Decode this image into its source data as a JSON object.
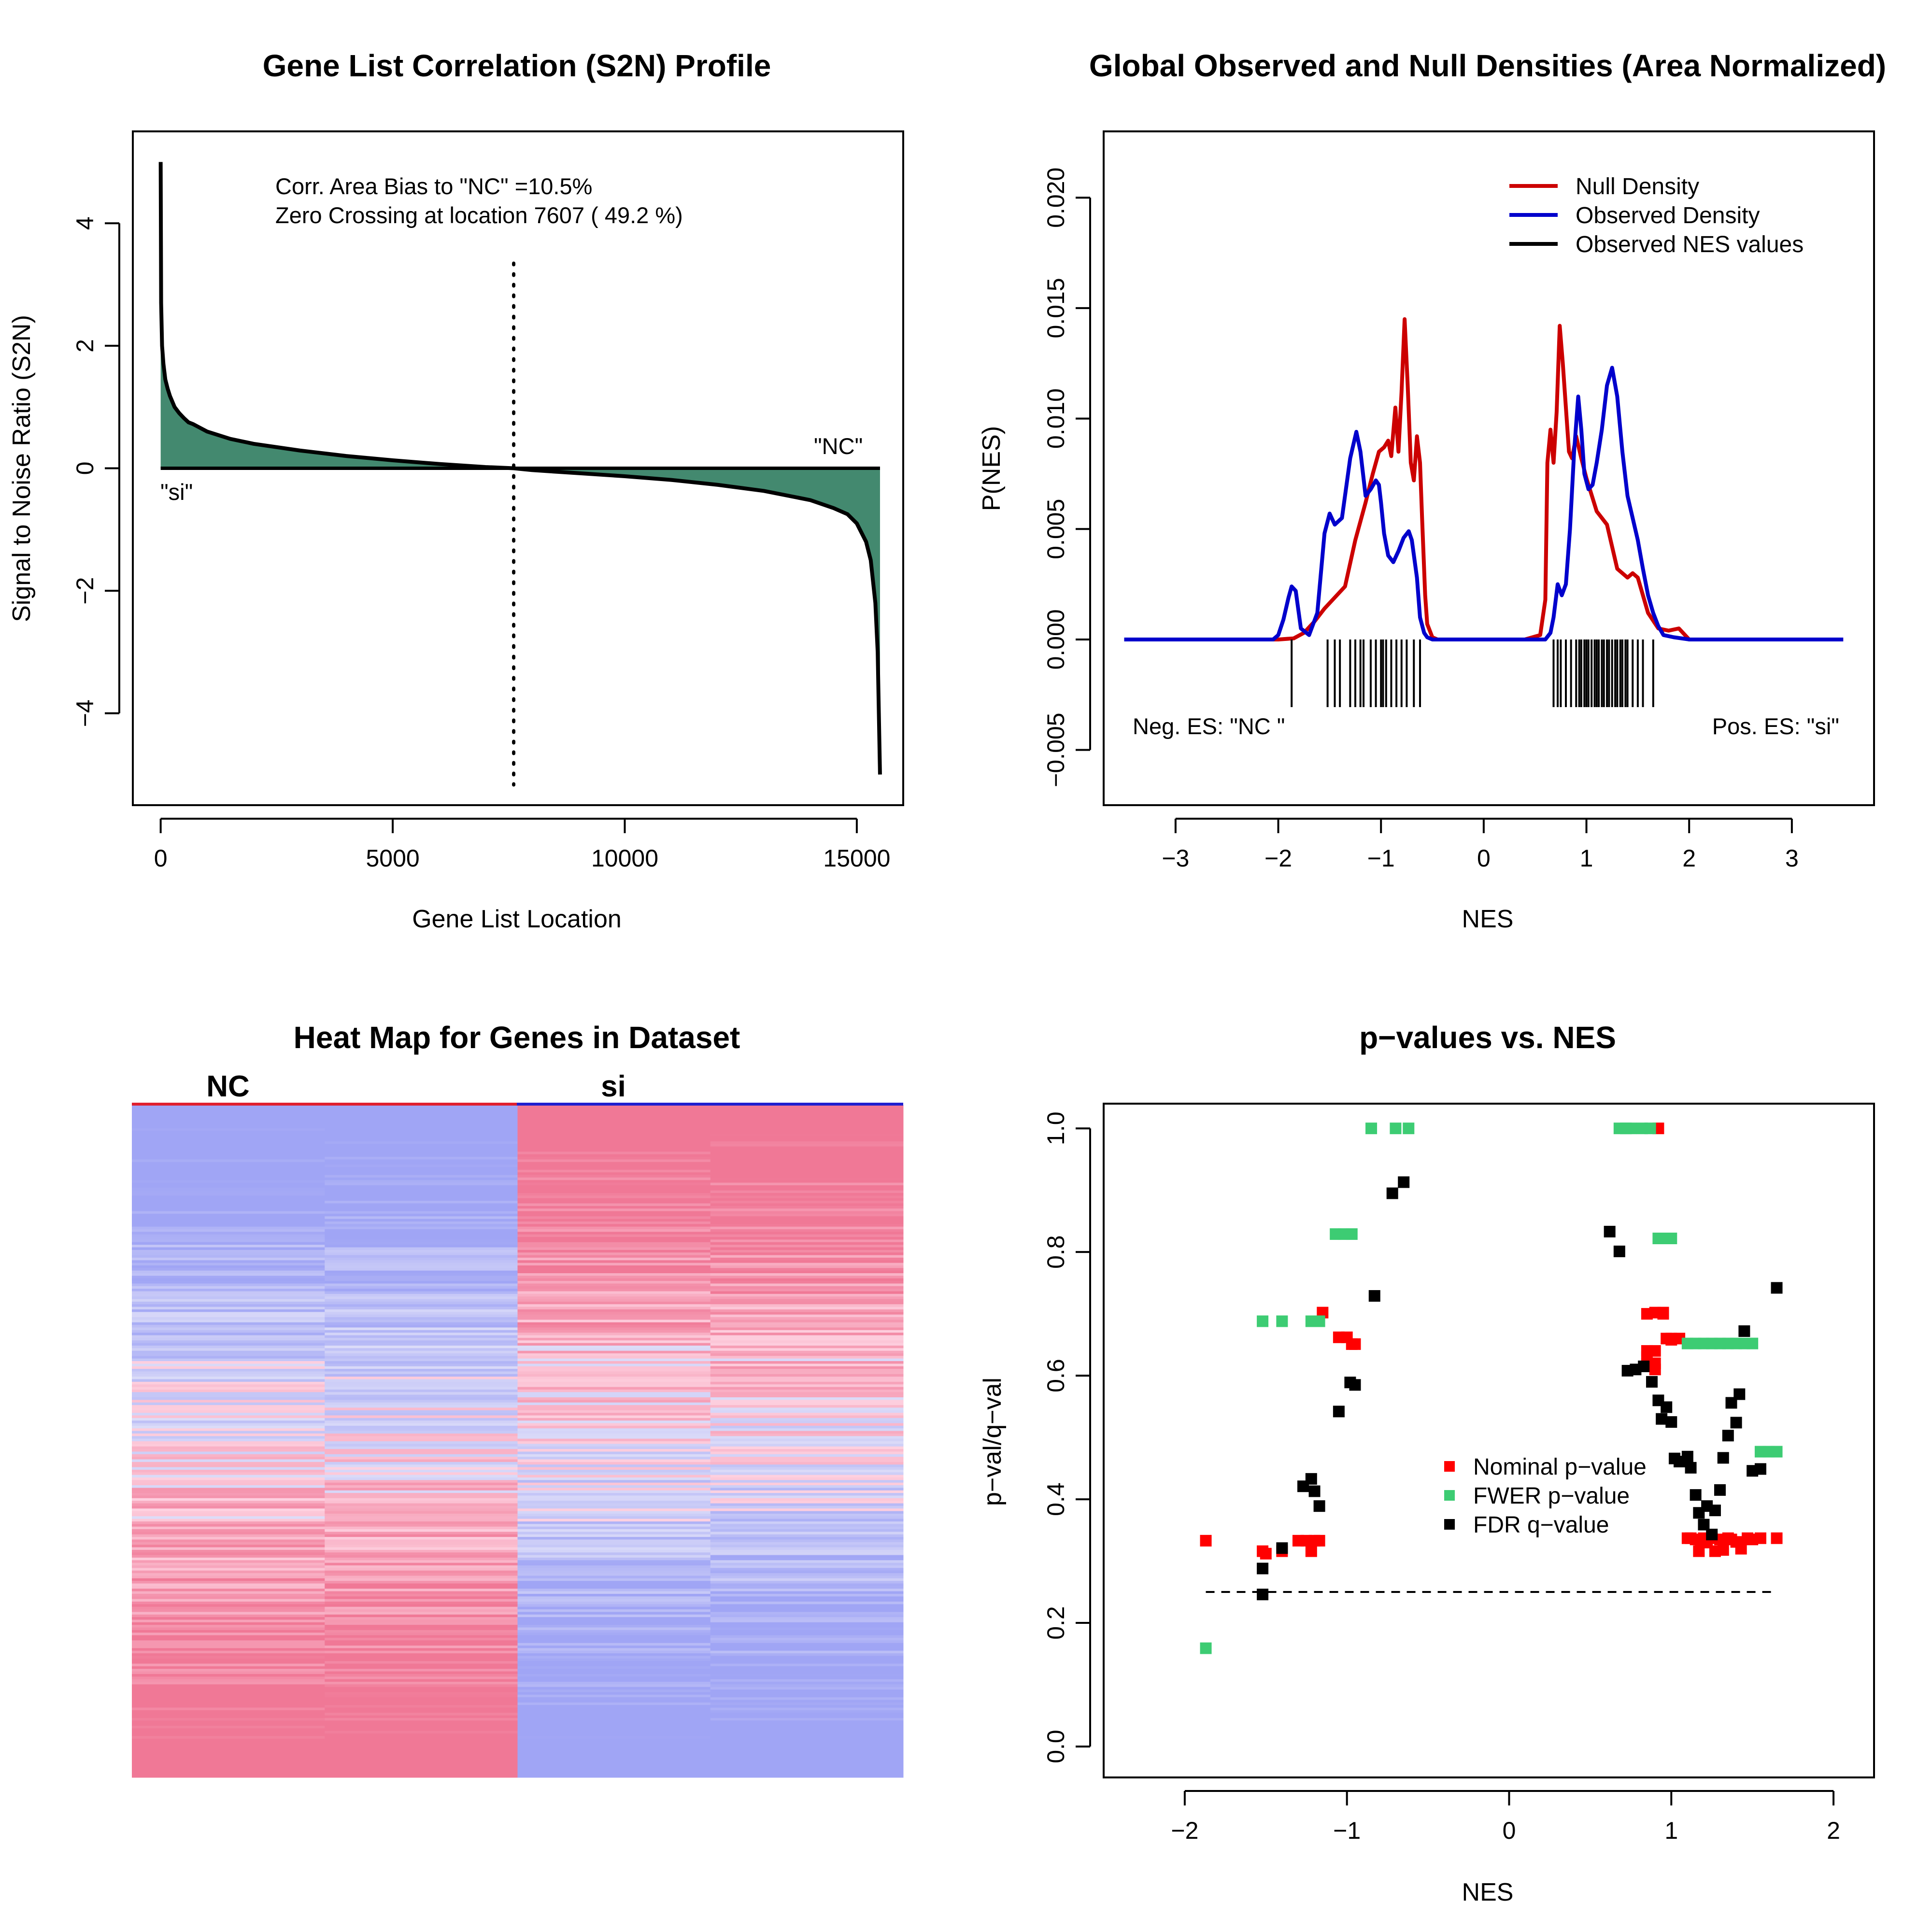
{
  "chart_data": [
    {
      "type": "area",
      "title": "Gene List Correlation (S2N) Profile",
      "xlabel": "Gene List Location",
      "ylabel": "Signal to Noise Ratio (S2N)",
      "xlim": [
        -600,
        16000
      ],
      "ylim": [
        -5.5,
        5.5
      ],
      "xticks": [
        0,
        5000,
        10000,
        15000
      ],
      "xtick_labels": [
        "0",
        "5000",
        "10000",
        "15000"
      ],
      "yticks": [
        -4,
        -2,
        0,
        2,
        4
      ],
      "ytick_labels": [
        "−4",
        "−2",
        "0",
        "2",
        "4"
      ],
      "grid": false,
      "fill_color": "#43896f",
      "annotations": {
        "bias": "Corr. Area Bias to \"NC\" =10.5%",
        "zero_crossing": "Zero Crossing at location  7607  ( 49.2  %)",
        "label_pos": "\"NC\"",
        "label_neg": "\"si\""
      },
      "zero_crossing_x": 7607,
      "x": [
        0,
        10,
        30,
        60,
        100,
        150,
        200,
        300,
        400,
        500,
        600,
        700,
        800,
        1000,
        1500,
        2000,
        3000,
        4000,
        5000,
        6000,
        7000,
        7607,
        8000,
        9000,
        10000,
        11000,
        12000,
        13000,
        14000,
        14500,
        14800,
        15000,
        15200,
        15300,
        15400,
        15450,
        15480,
        15500
      ],
      "y": [
        5.0,
        2.7,
        2.0,
        1.7,
        1.45,
        1.3,
        1.18,
        1.0,
        0.9,
        0.82,
        0.75,
        0.72,
        0.68,
        0.6,
        0.48,
        0.4,
        0.29,
        0.2,
        0.13,
        0.07,
        0.02,
        0.0,
        -0.03,
        -0.08,
        -0.13,
        -0.19,
        -0.27,
        -0.37,
        -0.52,
        -0.65,
        -0.75,
        -0.9,
        -1.2,
        -1.5,
        -2.2,
        -3.0,
        -4.2,
        -5.0
      ]
    },
    {
      "type": "line",
      "title": "Global Observed and Null Densities (Area Normalized)",
      "xlabel": "NES",
      "ylabel": "P(NES)",
      "xlim": [
        -3.7,
        3.8
      ],
      "ylim": [
        -0.0075,
        0.023
      ],
      "xticks": [
        -3,
        -2,
        -1,
        0,
        1,
        2,
        3
      ],
      "xtick_labels": [
        "−3",
        "−2",
        "−1",
        "0",
        "1",
        "2",
        "3"
      ],
      "yticks": [
        -0.005,
        0.0,
        0.005,
        0.01,
        0.015,
        0.02
      ],
      "ytick_labels": [
        "−0.005",
        "0.000",
        "0.005",
        "0.010",
        "0.015",
        "0.020"
      ],
      "legend_position": "top-right",
      "legend": [
        "Null Density",
        "Observed Density",
        "Observed NES values"
      ],
      "annotations": {
        "neg": "Neg. ES: \"NC \"",
        "pos": "Pos. ES: \"si\""
      },
      "series": [
        {
          "name": "Null Density",
          "color": "#cc0000",
          "x": [
            -3.5,
            -2.0,
            -1.85,
            -1.75,
            -1.65,
            -1.55,
            -1.45,
            -1.35,
            -1.25,
            -1.15,
            -1.08,
            -1.02,
            -0.97,
            -0.93,
            -0.9,
            -0.86,
            -0.83,
            -0.8,
            -0.77,
            -0.74,
            -0.71,
            -0.68,
            -0.65,
            -0.62,
            -0.6,
            -0.57,
            -0.55,
            -0.5,
            -0.45,
            -0.4,
            0.4,
            0.55,
            0.6,
            0.62,
            0.65,
            0.68,
            0.71,
            0.74,
            0.77,
            0.8,
            0.83,
            0.86,
            0.9,
            0.95,
            1.0,
            1.1,
            1.2,
            1.3,
            1.4,
            1.45,
            1.5,
            1.55,
            1.6,
            1.7,
            1.8,
            1.9,
            2.0,
            3.5
          ],
          "y": [
            0.0,
            0.0,
            5e-05,
            0.0003,
            0.0008,
            0.0014,
            0.0019,
            0.0024,
            0.0045,
            0.0062,
            0.0075,
            0.0085,
            0.0087,
            0.009,
            0.0083,
            0.0105,
            0.0085,
            0.0112,
            0.0145,
            0.0115,
            0.008,
            0.0072,
            0.0092,
            0.008,
            0.0055,
            0.002,
            0.0007,
            0.0001,
            0.0,
            0.0,
            0.0,
            0.0002,
            0.0018,
            0.008,
            0.0095,
            0.008,
            0.0103,
            0.0142,
            0.0125,
            0.0105,
            0.0085,
            0.0082,
            0.0092,
            0.0082,
            0.0073,
            0.0058,
            0.0052,
            0.0032,
            0.0028,
            0.003,
            0.0028,
            0.002,
            0.0012,
            0.0005,
            0.0004,
            0.0005,
            0.0,
            0.0
          ]
        },
        {
          "name": "Observed Density",
          "color": "#0000cc",
          "x": [
            -3.5,
            -2.05,
            -2.0,
            -1.95,
            -1.9,
            -1.87,
            -1.83,
            -1.78,
            -1.7,
            -1.62,
            -1.55,
            -1.5,
            -1.45,
            -1.38,
            -1.3,
            -1.24,
            -1.2,
            -1.15,
            -1.1,
            -1.05,
            -1.02,
            -1.0,
            -0.97,
            -0.93,
            -0.88,
            -0.83,
            -0.78,
            -0.73,
            -0.7,
            -0.65,
            -0.62,
            -0.58,
            -0.55,
            -0.5,
            -0.45,
            0.4,
            0.6,
            0.65,
            0.68,
            0.72,
            0.76,
            0.8,
            0.84,
            0.88,
            0.92,
            0.95,
            0.98,
            1.02,
            1.06,
            1.1,
            1.15,
            1.2,
            1.25,
            1.3,
            1.35,
            1.4,
            1.45,
            1.5,
            1.55,
            1.6,
            1.65,
            1.7,
            1.75,
            1.85,
            2.0,
            3.5
          ],
          "y": [
            0.0,
            0.0,
            0.0002,
            0.0009,
            0.0019,
            0.0024,
            0.0022,
            0.0005,
            0.0002,
            0.0012,
            0.0048,
            0.0057,
            0.0052,
            0.0055,
            0.0082,
            0.0094,
            0.0085,
            0.0065,
            0.0068,
            0.0072,
            0.007,
            0.0062,
            0.0048,
            0.0038,
            0.0035,
            0.004,
            0.0046,
            0.0049,
            0.0045,
            0.0028,
            0.001,
            0.0003,
            0.0001,
            0.0,
            0.0,
            0.0,
            0.0,
            0.0003,
            0.001,
            0.0025,
            0.002,
            0.0025,
            0.005,
            0.0085,
            0.011,
            0.0095,
            0.0075,
            0.0068,
            0.007,
            0.008,
            0.0095,
            0.0115,
            0.0123,
            0.011,
            0.0085,
            0.0065,
            0.0055,
            0.0045,
            0.0032,
            0.002,
            0.0012,
            0.0006,
            0.0002,
            0.0001,
            0.0,
            0.0
          ]
        }
      ],
      "rug": [
        -1.87,
        -1.52,
        -1.45,
        -1.4,
        -1.3,
        -1.25,
        -1.2,
        -1.17,
        -1.1,
        -1.05,
        -1.0,
        -0.98,
        -0.95,
        -0.9,
        -0.85,
        -0.8,
        -0.75,
        -0.68,
        -0.62,
        0.68,
        0.72,
        0.75,
        0.8,
        0.85,
        0.9,
        0.93,
        0.95,
        0.98,
        1.0,
        1.02,
        1.05,
        1.08,
        1.1,
        1.12,
        1.15,
        1.17,
        1.2,
        1.22,
        1.25,
        1.28,
        1.3,
        1.33,
        1.35,
        1.38,
        1.4,
        1.45,
        1.5,
        1.55,
        1.65
      ]
    },
    {
      "type": "heatmap",
      "title": "Heat Map for Genes in Dataset",
      "groups": [
        "NC",
        "si"
      ],
      "group_colors": [
        "#e0202f",
        "#2020d0"
      ],
      "columns": 4
    },
    {
      "type": "scatter",
      "title": "p−values vs. NES",
      "xlabel": "NES",
      "ylabel": "p−val/q−val",
      "xlim": [
        -2.5,
        2.25
      ],
      "ylim": [
        -0.05,
        1.04
      ],
      "xticks": [
        -2,
        -1,
        0,
        1,
        2
      ],
      "xtick_labels": [
        "−2",
        "−1",
        "0",
        "1",
        "2"
      ],
      "yticks": [
        0.0,
        0.2,
        0.4,
        0.6,
        0.8,
        1.0
      ],
      "ytick_labels": [
        "0.0",
        "0.2",
        "0.4",
        "0.6",
        "0.8",
        "1.0"
      ],
      "threshold": 0.25,
      "threshold_xrange": [
        -1.87,
        1.65
      ],
      "legend_position": "center-right",
      "legend": [
        "Nominal p−value",
        "FWER p−value",
        "FDR q−value"
      ],
      "series": [
        {
          "name": "Nominal p−value",
          "color": "#ff0000",
          "x": [
            -1.87,
            -1.52,
            -1.5,
            -1.4,
            -1.3,
            -1.25,
            -1.22,
            -1.2,
            -1.17,
            -1.15,
            -1.05,
            -1.0,
            -0.97,
            -0.95,
            0.85,
            0.85,
            0.85,
            0.85,
            0.9,
            0.9,
            0.9,
            0.9,
            0.92,
            0.95,
            0.95,
            0.97,
            1.0,
            1.0,
            1.05,
            1.1,
            1.12,
            1.15,
            1.17,
            1.18,
            1.2,
            1.22,
            1.25,
            1.27,
            1.3,
            1.32,
            1.35,
            1.37,
            1.4,
            1.43,
            1.47,
            1.5,
            1.55,
            1.65
          ],
          "y": [
            0.333,
            0.316,
            0.312,
            0.316,
            0.333,
            0.333,
            0.316,
            0.333,
            0.333,
            0.702,
            0.662,
            0.662,
            0.651,
            0.651,
            0.64,
            0.63,
            0.62,
            0.7,
            0.702,
            0.64,
            0.62,
            0.61,
            1.0,
            0.7,
            0.702,
            0.66,
            0.658,
            0.66,
            0.66,
            0.337,
            0.337,
            0.335,
            0.316,
            0.334,
            0.337,
            0.33,
            0.337,
            0.316,
            0.335,
            0.318,
            0.337,
            0.335,
            0.331,
            0.32,
            0.337,
            0.335,
            0.337,
            0.337
          ]
        },
        {
          "name": "FWER p−value",
          "color": "#3dcc73",
          "x": [
            -1.87,
            -1.52,
            -1.4,
            -1.22,
            -1.17,
            -1.07,
            -1.02,
            -0.97,
            -0.85,
            -0.7,
            -0.62,
            0.68,
            0.72,
            0.75,
            0.82,
            0.87,
            0.92,
            0.97,
            1.0,
            1.1,
            1.15,
            1.2,
            1.25,
            1.3,
            1.35,
            1.4,
            1.45,
            1.5,
            1.55,
            1.6,
            1.65
          ],
          "y": [
            0.159,
            0.688,
            0.688,
            0.688,
            0.688,
            0.829,
            0.829,
            0.829,
            1.0,
            1.0,
            1.0,
            1.0,
            1.0,
            1.0,
            1.0,
            1.0,
            0.822,
            0.822,
            0.822,
            0.652,
            0.652,
            0.652,
            0.652,
            0.652,
            0.652,
            0.652,
            0.652,
            0.652,
            0.477,
            0.477,
            0.477
          ]
        },
        {
          "name": "FDR q−value",
          "color": "#000000",
          "x": [
            -1.52,
            -1.52,
            -1.4,
            -1.27,
            -1.22,
            -1.2,
            -1.17,
            -1.05,
            -0.98,
            -0.95,
            -0.83,
            -0.72,
            -0.65,
            0.62,
            0.68,
            0.73,
            0.78,
            0.83,
            0.88,
            0.92,
            0.94,
            0.97,
            1.0,
            1.02,
            1.05,
            1.1,
            1.12,
            1.15,
            1.17,
            1.2,
            1.22,
            1.25,
            1.27,
            1.3,
            1.32,
            1.35,
            1.37,
            1.4,
            1.42,
            1.45,
            1.5,
            1.55,
            1.65
          ],
          "y": [
            0.288,
            0.246,
            0.321,
            0.421,
            0.433,
            0.413,
            0.389,
            0.542,
            0.589,
            0.585,
            0.729,
            0.895,
            0.913,
            0.833,
            0.801,
            0.608,
            0.61,
            0.615,
            0.59,
            0.56,
            0.53,
            0.549,
            0.525,
            0.466,
            0.461,
            0.469,
            0.451,
            0.407,
            0.378,
            0.359,
            0.389,
            0.343,
            0.382,
            0.415,
            0.467,
            0.503,
            0.556,
            0.524,
            0.57,
            0.672,
            0.446,
            0.449,
            0.742
          ]
        }
      ]
    }
  ]
}
